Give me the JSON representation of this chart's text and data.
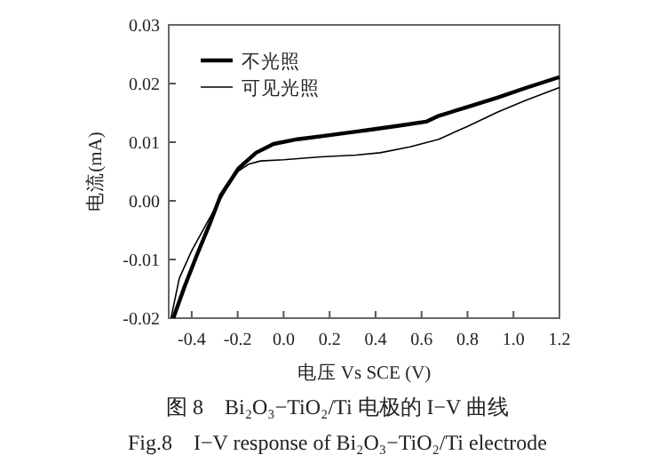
{
  "chart_data": {
    "type": "line",
    "xlabel": "电压 Vs SCE (V)",
    "ylabel": "电流(mA)",
    "annotations": [
      "图 8　Bi₂O₃−TiO₂/Ti 电极的 I−V 曲线",
      "Fig.8　I−V response of Bi₂O₃−TiO₂/Ti electrode"
    ],
    "series": [
      {
        "name": "不光照",
        "color": "#000000",
        "x": [
          -0.48,
          -0.43,
          -0.377,
          -0.32,
          -0.274,
          -0.197,
          -0.12,
          -0.044,
          0.059,
          0.162,
          0.315,
          0.39,
          0.5,
          0.62,
          0.675,
          0.8,
          0.93,
          1.05,
          1.2
        ],
        "values": [
          -0.02,
          -0.0145,
          -0.0092,
          -0.0038,
          0.0009,
          0.0055,
          0.0082,
          0.0097,
          0.0105,
          0.011,
          0.0118,
          0.0122,
          0.0128,
          0.0135,
          0.0145,
          0.016,
          0.0176,
          0.0192,
          0.0211
        ]
      },
      {
        "name": "可见光照",
        "color": "#000000",
        "x": [
          -0.49,
          -0.454,
          -0.4,
          -0.33,
          -0.25,
          -0.2,
          -0.15,
          -0.1,
          0.0,
          0.162,
          0.315,
          0.42,
          0.55,
          0.675,
          0.8,
          0.93,
          1.05,
          1.2
        ],
        "values": [
          -0.02,
          -0.0132,
          -0.0085,
          -0.0035,
          0.002,
          0.005,
          0.0063,
          0.0068,
          0.007,
          0.0075,
          0.0078,
          0.0082,
          0.0092,
          0.0105,
          0.0127,
          0.0151,
          0.0171,
          0.0193
        ]
      }
    ],
    "xlim": [
      -0.5,
      1.2
    ],
    "ylim": [
      -0.02,
      0.03
    ],
    "xticks": [
      -0.4,
      -0.2,
      {
        "value": 0,
        "label": "0.0"
      },
      0.2,
      0.4,
      0.6,
      0.8,
      {
        "value": 1,
        "label": "1.0"
      },
      1.2
    ],
    "yticks": [
      -0.02,
      -0.01,
      {
        "value": 0,
        "label": "0.00"
      },
      0.01,
      0.02,
      0.03
    ],
    "legend": "top left",
    "grid": false
  }
}
